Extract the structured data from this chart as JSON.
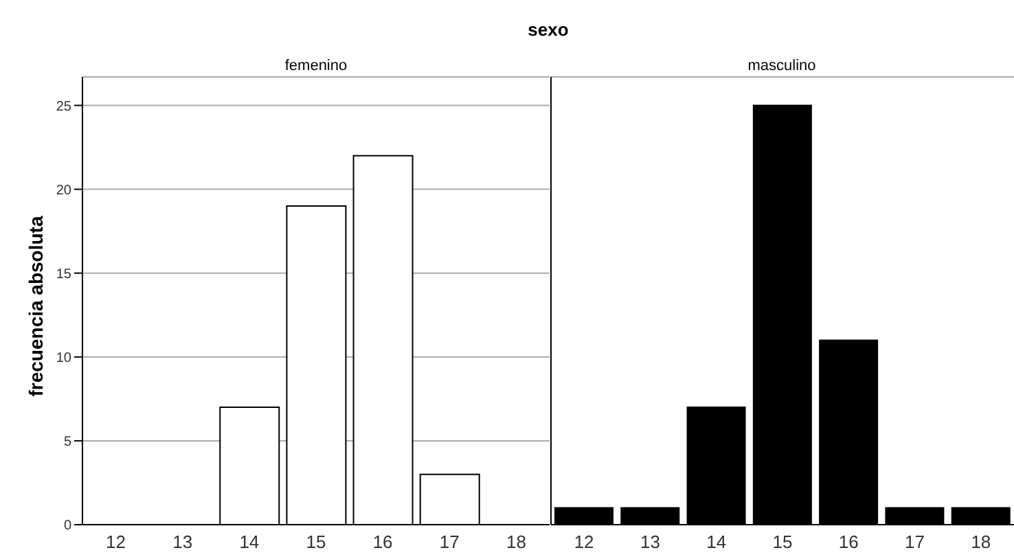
{
  "chart_data": [
    {
      "type": "bar",
      "title": "femenino",
      "ylabel": "frecuencia absoluta",
      "annotations": [
        "sexo"
      ],
      "categories": [
        "12",
        "13",
        "14",
        "15",
        "16",
        "17",
        "18"
      ],
      "series": [
        {
          "color": "#ffffff",
          "values": [
            0,
            0,
            7,
            19,
            22,
            3,
            0
          ]
        }
      ],
      "ylim": [
        0,
        26.7
      ],
      "yticks": [
        0,
        5,
        10,
        15,
        20,
        25
      ],
      "grid": "y"
    },
    {
      "type": "bar",
      "title": "masculino",
      "categories": [
        "12",
        "13",
        "14",
        "15",
        "16",
        "17",
        "18"
      ],
      "series": [
        {
          "color": "#000000",
          "values": [
            1,
            1,
            7,
            25,
            11,
            1,
            1
          ]
        }
      ],
      "ylim": [
        0,
        26.7
      ],
      "yticks": [
        0,
        5,
        10,
        15,
        20,
        25
      ],
      "grid": "y",
      "tick_labels": "x"
    }
  ]
}
